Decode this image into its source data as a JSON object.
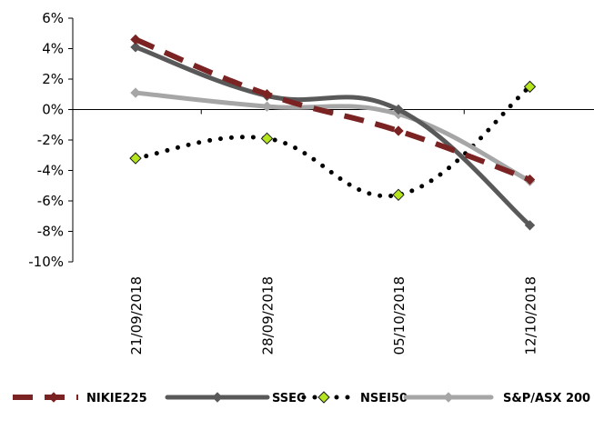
{
  "chart_data": {
    "type": "line",
    "title": "",
    "xlabel": "",
    "ylabel": "",
    "categories": [
      "21/09/2018",
      "28/09/2018",
      "05/10/2018",
      "12/10/2018"
    ],
    "ylim": [
      -10,
      6
    ],
    "yticks": [
      6,
      4,
      2,
      0,
      -2,
      -4,
      -6,
      -8,
      -10
    ],
    "ytick_labels": [
      "6%",
      "4%",
      "2%",
      "0%",
      "-2%",
      "-4%",
      "-6%",
      "-8%",
      "-10%"
    ],
    "grid": false,
    "legend_position": "bottom",
    "series": [
      {
        "name": "NIKIE225",
        "values": [
          4.6,
          1.0,
          -1.4,
          -4.6
        ],
        "color": "#7b2323",
        "dash": "dashed",
        "marker": "diamond",
        "marker_color": "#7b2323"
      },
      {
        "name": "SSEC",
        "values": [
          4.1,
          0.9,
          0.0,
          -7.6
        ],
        "color": "#595959",
        "dash": "solid",
        "marker": "diamond",
        "marker_color": "#595959"
      },
      {
        "name": "NSEI50",
        "values": [
          -3.2,
          -1.9,
          -5.6,
          1.5
        ],
        "color": "#000000",
        "dash": "dotted",
        "marker": "diamond",
        "marker_color": "#b5e61d"
      },
      {
        "name": "S&P/ASX 200",
        "values": [
          1.1,
          0.2,
          -0.3,
          -4.7
        ],
        "color": "#a6a6a6",
        "dash": "solid",
        "marker": "diamond",
        "marker_color": "#a6a6a6"
      }
    ]
  }
}
